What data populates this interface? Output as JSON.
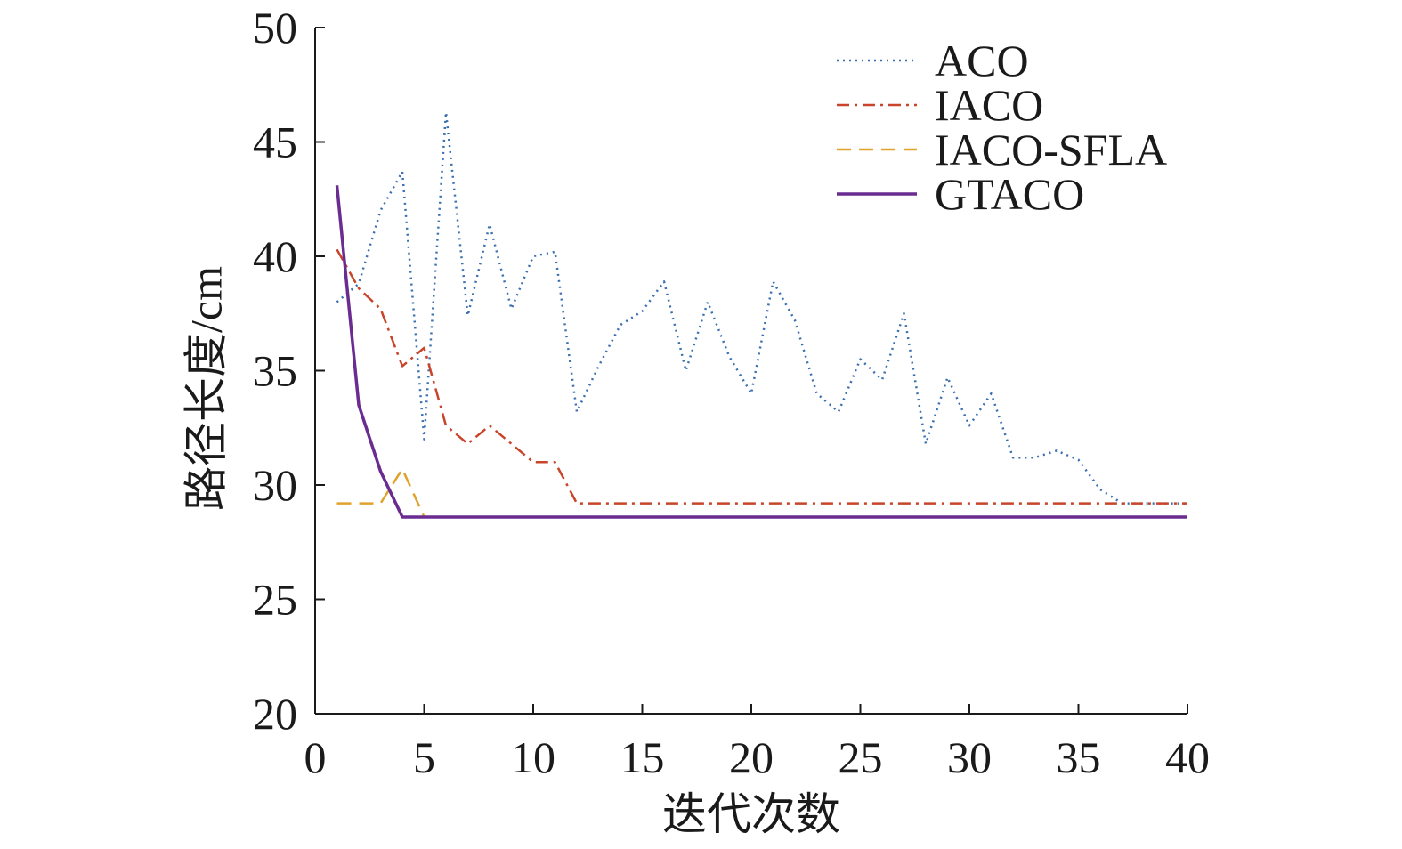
{
  "chart_data": {
    "type": "line",
    "title": "",
    "xlabel": "迭代次数",
    "ylabel": "路径长度/cm",
    "xlim": [
      0,
      40
    ],
    "ylim": [
      20,
      50
    ],
    "xticks": [
      0,
      5,
      10,
      15,
      20,
      25,
      30,
      35,
      40
    ],
    "yticks": [
      20,
      25,
      30,
      35,
      40,
      45,
      50
    ],
    "grid": false,
    "legend_position": "top-right",
    "series": [
      {
        "name": "ACO",
        "color": "#3a6fb0",
        "style": "dotted",
        "x": [
          1,
          2,
          3,
          4,
          5,
          6,
          7,
          8,
          9,
          10,
          11,
          12,
          13,
          14,
          15,
          16,
          17,
          18,
          19,
          20,
          21,
          22,
          23,
          24,
          25,
          26,
          27,
          28,
          29,
          30,
          31,
          32,
          33,
          34,
          35,
          36,
          37,
          38,
          39,
          40
        ],
        "y": [
          38.0,
          38.8,
          42.0,
          43.7,
          32.0,
          46.3,
          37.4,
          41.4,
          37.7,
          40.0,
          40.2,
          33.2,
          35.2,
          37.0,
          37.6,
          38.9,
          35.0,
          38.0,
          35.6,
          34.0,
          38.9,
          37.2,
          34.0,
          33.2,
          35.5,
          34.6,
          37.5,
          31.8,
          34.7,
          32.6,
          34.0,
          31.2,
          31.2,
          31.5,
          31.1,
          29.8,
          29.2,
          29.2,
          29.2,
          29.2
        ]
      },
      {
        "name": "IACO",
        "color": "#c8442a",
        "style": "dashdot",
        "x": [
          1,
          2,
          3,
          4,
          5,
          6,
          7,
          8,
          9,
          10,
          11,
          12,
          13,
          14,
          15,
          16,
          17,
          18,
          19,
          20,
          21,
          22,
          23,
          24,
          25,
          26,
          27,
          28,
          29,
          30,
          31,
          32,
          33,
          34,
          35,
          36,
          37,
          38,
          39,
          40
        ],
        "y": [
          40.3,
          38.6,
          37.7,
          35.2,
          36.0,
          32.6,
          31.8,
          32.6,
          31.8,
          31.0,
          31.0,
          29.2,
          29.2,
          29.2,
          29.2,
          29.2,
          29.2,
          29.2,
          29.2,
          29.2,
          29.2,
          29.2,
          29.2,
          29.2,
          29.2,
          29.2,
          29.2,
          29.2,
          29.2,
          29.2,
          29.2,
          29.2,
          29.2,
          29.2,
          29.2,
          29.2,
          29.2,
          29.2,
          29.2,
          29.2
        ]
      },
      {
        "name": "IACO-SFLA",
        "color": "#e0a22a",
        "style": "dashed",
        "x": [
          1,
          2,
          3,
          4,
          5,
          6,
          7,
          8,
          9,
          10,
          11,
          12,
          13,
          14,
          15,
          16,
          17,
          18,
          19,
          20,
          21,
          22,
          23,
          24,
          25,
          26,
          27,
          28,
          29,
          30,
          31,
          32,
          33,
          34,
          35,
          36,
          37,
          38,
          39,
          40
        ],
        "y": [
          29.2,
          29.2,
          29.2,
          30.7,
          28.6,
          28.6,
          28.6,
          28.6,
          28.6,
          28.6,
          28.6,
          28.6,
          28.6,
          28.6,
          28.6,
          28.6,
          28.6,
          28.6,
          28.6,
          28.6,
          28.6,
          28.6,
          28.6,
          28.6,
          28.6,
          28.6,
          28.6,
          28.6,
          28.6,
          28.6,
          28.6,
          28.6,
          28.6,
          28.6,
          28.6,
          28.6,
          28.6,
          28.6,
          28.6,
          28.6
        ]
      },
      {
        "name": "GTACO",
        "color": "#6a2c91",
        "style": "solid",
        "x": [
          1,
          2,
          3,
          4,
          5,
          6,
          7,
          8,
          9,
          10,
          11,
          12,
          13,
          14,
          15,
          16,
          17,
          18,
          19,
          20,
          21,
          22,
          23,
          24,
          25,
          26,
          27,
          28,
          29,
          30,
          31,
          32,
          33,
          34,
          35,
          36,
          37,
          38,
          39,
          40
        ],
        "y": [
          43.1,
          33.5,
          30.6,
          28.6,
          28.6,
          28.6,
          28.6,
          28.6,
          28.6,
          28.6,
          28.6,
          28.6,
          28.6,
          28.6,
          28.6,
          28.6,
          28.6,
          28.6,
          28.6,
          28.6,
          28.6,
          28.6,
          28.6,
          28.6,
          28.6,
          28.6,
          28.6,
          28.6,
          28.6,
          28.6,
          28.6,
          28.6,
          28.6,
          28.6,
          28.6,
          28.6,
          28.6,
          28.6,
          28.6,
          28.6
        ]
      }
    ]
  }
}
